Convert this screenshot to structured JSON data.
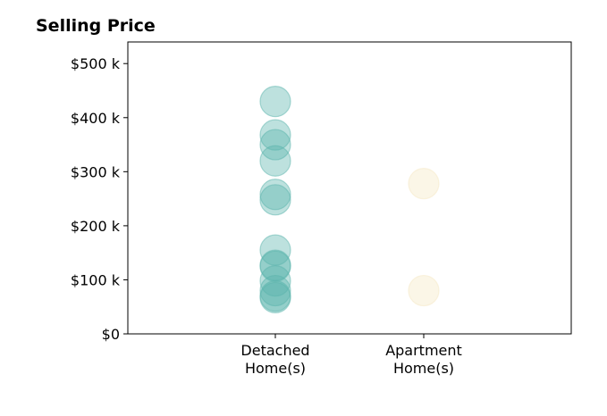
{
  "chart_data": {
    "type": "scatter",
    "title": "Selling Price",
    "xlabel": "",
    "ylabel": "",
    "categories": [
      [
        "Detached",
        "Home(s)"
      ],
      [
        "Apartment",
        "Home(s)"
      ]
    ],
    "ylim": [
      0,
      540000
    ],
    "yticks": [
      0,
      100000,
      200000,
      300000,
      400000,
      500000
    ],
    "ytick_labels": [
      "$0",
      "$100 k",
      "$200 k",
      "$300 k",
      "$400 k",
      "$500 k"
    ],
    "grid": false,
    "series": [
      {
        "category": 0,
        "color": "#5ab4ac",
        "values": [
          430000,
          368000,
          350000,
          320000,
          258000,
          248000,
          155000,
          127000,
          125000,
          98000,
          80000,
          70000,
          67000
        ]
      },
      {
        "category": 1,
        "color": "#f6e8c3",
        "values": [
          278000,
          80000
        ]
      }
    ]
  }
}
